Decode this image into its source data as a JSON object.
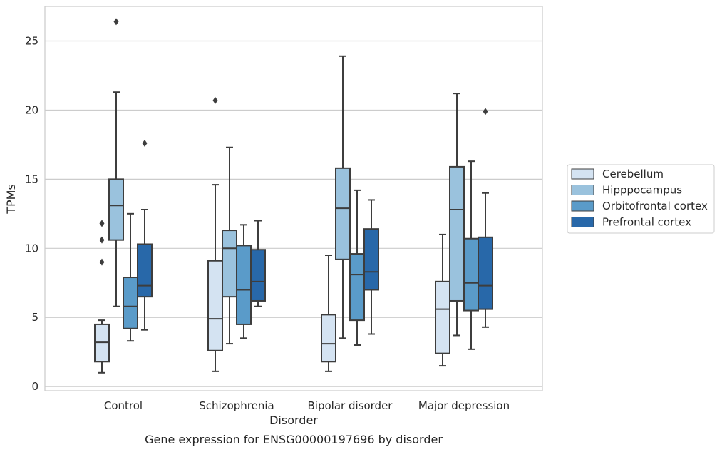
{
  "chart_data": {
    "type": "box",
    "caption": "Gene expression for ENSG00000197696 by disorder",
    "xlabel": "Disorder",
    "ylabel": "TPMs",
    "ylim": [
      -0.3,
      27.5
    ],
    "yticks": [
      0,
      5,
      10,
      15,
      20,
      25
    ],
    "grid": "horizontal",
    "legend_position": "right",
    "categories": [
      "Control",
      "Schizophrenia",
      "Bipolar disorder",
      "Major depression"
    ],
    "series": [
      {
        "name": "Cerebellum",
        "color": "#d4e3f2",
        "boxes": [
          {
            "whisker_low": 1.0,
            "q1": 1.8,
            "median": 3.2,
            "q3": 4.5,
            "whisker_high": 4.8,
            "outliers": [
              9.0,
              10.6,
              11.8
            ]
          },
          {
            "whisker_low": 1.1,
            "q1": 2.6,
            "median": 4.9,
            "q3": 9.1,
            "whisker_high": 14.6,
            "outliers": [
              20.7
            ]
          },
          {
            "whisker_low": 1.1,
            "q1": 1.8,
            "median": 3.1,
            "q3": 5.2,
            "whisker_high": 9.5,
            "outliers": []
          },
          {
            "whisker_low": 1.5,
            "q1": 2.4,
            "median": 5.6,
            "q3": 7.6,
            "whisker_high": 11.0,
            "outliers": []
          }
        ]
      },
      {
        "name": "Hipppocampus",
        "color": "#9ac2dd",
        "boxes": [
          {
            "whisker_low": 5.8,
            "q1": 10.6,
            "median": 13.1,
            "q3": 15.0,
            "whisker_high": 21.3,
            "outliers": [
              26.4
            ]
          },
          {
            "whisker_low": 3.1,
            "q1": 6.5,
            "median": 10.0,
            "q3": 11.3,
            "whisker_high": 17.3,
            "outliers": []
          },
          {
            "whisker_low": 3.5,
            "q1": 9.2,
            "median": 12.9,
            "q3": 15.8,
            "whisker_high": 23.9,
            "outliers": []
          },
          {
            "whisker_low": 3.7,
            "q1": 6.2,
            "median": 12.8,
            "q3": 15.9,
            "whisker_high": 21.2,
            "outliers": []
          }
        ]
      },
      {
        "name": "Orbitofrontal cortex",
        "color": "#5a9bc9",
        "boxes": [
          {
            "whisker_low": 3.3,
            "q1": 4.2,
            "median": 5.8,
            "q3": 7.9,
            "whisker_high": 12.5,
            "outliers": []
          },
          {
            "whisker_low": 3.5,
            "q1": 4.5,
            "median": 7.0,
            "q3": 10.2,
            "whisker_high": 11.7,
            "outliers": []
          },
          {
            "whisker_low": 3.0,
            "q1": 4.8,
            "median": 8.1,
            "q3": 9.6,
            "whisker_high": 14.2,
            "outliers": []
          },
          {
            "whisker_low": 2.7,
            "q1": 5.5,
            "median": 7.5,
            "q3": 10.7,
            "whisker_high": 16.3,
            "outliers": []
          }
        ]
      },
      {
        "name": "Prefrontal cortex",
        "color": "#2868a9",
        "boxes": [
          {
            "whisker_low": 4.1,
            "q1": 6.5,
            "median": 7.3,
            "q3": 10.3,
            "whisker_high": 12.8,
            "outliers": [
              17.6
            ]
          },
          {
            "whisker_low": 5.8,
            "q1": 6.2,
            "median": 7.6,
            "q3": 9.9,
            "whisker_high": 12.0,
            "outliers": []
          },
          {
            "whisker_low": 3.8,
            "q1": 7.0,
            "median": 8.3,
            "q3": 11.4,
            "whisker_high": 13.5,
            "outliers": []
          },
          {
            "whisker_low": 4.3,
            "q1": 5.6,
            "median": 7.3,
            "q3": 10.8,
            "whisker_high": 14.0,
            "outliers": [
              19.9
            ]
          }
        ]
      }
    ]
  }
}
